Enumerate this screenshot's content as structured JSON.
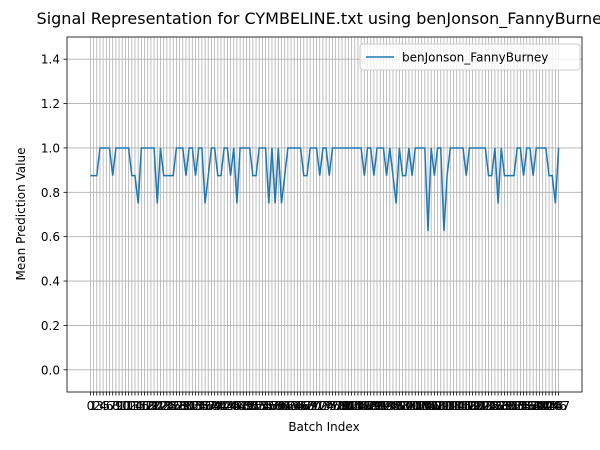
{
  "chart_data": {
    "type": "line",
    "title": "Signal Representation for CYMBELINE.txt using benJonson_FannyBurney",
    "x_label": "Batch Index",
    "y_label": "Mean Prediction Value",
    "x": [
      0,
      1,
      2,
      3,
      4,
      5,
      6,
      7,
      8,
      9,
      10,
      11,
      12,
      13,
      14,
      15,
      16,
      17,
      18,
      19,
      20,
      21,
      22,
      23,
      24,
      25,
      26,
      27,
      28,
      29,
      30,
      31,
      32,
      33,
      34,
      35,
      36,
      37,
      38,
      39,
      40,
      41,
      42,
      43,
      44,
      45,
      46,
      47,
      48,
      49,
      50,
      51,
      52,
      53,
      54,
      55,
      56,
      57,
      58,
      59,
      60,
      61,
      62,
      63,
      64,
      65,
      66,
      67,
      68,
      69,
      70,
      71,
      72,
      73,
      74,
      75,
      76,
      77,
      78,
      79,
      80,
      81,
      82,
      83,
      84,
      85,
      86,
      87,
      88,
      89,
      90,
      91,
      92,
      93,
      94,
      95,
      96,
      97,
      98,
      99,
      100,
      101,
      102,
      103,
      104,
      105,
      106,
      107,
      108,
      109,
      110,
      111,
      112,
      113,
      114,
      115,
      116,
      117,
      118,
      119,
      120,
      121,
      122,
      123,
      124,
      125,
      126,
      127,
      128,
      129,
      130,
      131,
      132,
      133,
      134,
      135,
      136,
      137,
      138,
      139,
      140,
      141,
      142,
      143,
      144,
      145,
      146,
      147
    ],
    "series": [
      {
        "name": "benJonson_FannyBurney",
        "color": "#1f77b4",
        "values": [
          0.875,
          0.875,
          0.875,
          1,
          1,
          1,
          1,
          0.875,
          1,
          1,
          1,
          1,
          1,
          0.875,
          0.875,
          0.75,
          1,
          1,
          1,
          1,
          1,
          0.75,
          1,
          0.875,
          0.875,
          0.875,
          0.875,
          1,
          1,
          1,
          0.875,
          1,
          1,
          0.875,
          1,
          1,
          0.75,
          0.875,
          1,
          1,
          0.875,
          0.875,
          1,
          1,
          0.875,
          1,
          0.75,
          1,
          1,
          1,
          1,
          0.875,
          0.875,
          1,
          1,
          1,
          0.75,
          1,
          0.75,
          1,
          0.75,
          0.875,
          1,
          1,
          1,
          1,
          1,
          0.875,
          0.875,
          1,
          1,
          1,
          0.875,
          1,
          1,
          0.875,
          1,
          1,
          1,
          1,
          1,
          1,
          1,
          1,
          1,
          1,
          0.875,
          1,
          1,
          0.875,
          1,
          1,
          1,
          0.875,
          1,
          0.875,
          0.75,
          1,
          0.875,
          0.875,
          1,
          0.875,
          1,
          1,
          1,
          1,
          0.625,
          1,
          0.875,
          1,
          1,
          0.625,
          0.875,
          1,
          1,
          1,
          1,
          1,
          0.875,
          1,
          1,
          1,
          1,
          1,
          1,
          0.875,
          0.875,
          1,
          0.75,
          1,
          0.875,
          0.875,
          0.875,
          0.875,
          1,
          1,
          0.875,
          1,
          1,
          0.875,
          1,
          1,
          1,
          1,
          0.875,
          0.875,
          0.75,
          1
        ]
      }
    ],
    "xlim": [
      -7.35,
      154.35
    ],
    "xticks": [
      0,
      1,
      2,
      3,
      4,
      5,
      6,
      7,
      8,
      9,
      10,
      11,
      12,
      13,
      14,
      15,
      16,
      17,
      18,
      19,
      20,
      21,
      22,
      23,
      24,
      25,
      26,
      27,
      28,
      29,
      30,
      31,
      32,
      33,
      34,
      35,
      36,
      37,
      38,
      39,
      40,
      41,
      42,
      43,
      44,
      45,
      46,
      47,
      48,
      49,
      50,
      51,
      52,
      53,
      54,
      55,
      56,
      57,
      58,
      59,
      60,
      61,
      62,
      63,
      64,
      65,
      66,
      67,
      68,
      69,
      70,
      71,
      72,
      73,
      74,
      75,
      76,
      77,
      78,
      79,
      80,
      81,
      82,
      83,
      84,
      85,
      86,
      87,
      88,
      89,
      90,
      91,
      92,
      93,
      94,
      95,
      96,
      97,
      98,
      99,
      100,
      101,
      102,
      103,
      104,
      105,
      106,
      107,
      108,
      109,
      110,
      111,
      112,
      113,
      114,
      115,
      116,
      117,
      118,
      119,
      120,
      121,
      122,
      123,
      124,
      125,
      126,
      127,
      128,
      129,
      130,
      131,
      132,
      133,
      134,
      135,
      136,
      137,
      138,
      139,
      140,
      141,
      142,
      143,
      144,
      145,
      146,
      147
    ],
    "ylim": [
      -0.1,
      1.5
    ],
    "yticks": [
      {
        "value": 0,
        "label": "0.0"
      },
      0.2,
      0.4,
      0.6,
      0.8,
      {
        "value": 1,
        "label": "1.0"
      },
      1.2,
      1.4
    ],
    "grid": true,
    "legend": "upper right"
  }
}
